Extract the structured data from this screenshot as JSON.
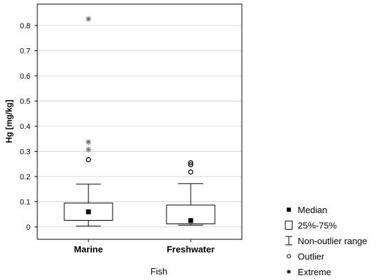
{
  "chart_data": {
    "type": "boxplot",
    "xlabel": "Fish",
    "ylabel": "Hg [mg/kg]",
    "ylim": [
      -0.05,
      0.87
    ],
    "yticks": [
      "0",
      "0.1",
      "0.2",
      "0.3",
      "0.4",
      "0.5",
      "0.6",
      "0.7",
      "0.8"
    ],
    "grid": "horizontal",
    "legend_position": "bottom-right",
    "categories": [
      "Marine",
      "Freshwater"
    ],
    "groups": [
      {
        "category": "Marine",
        "median": 0.06,
        "q1": 0.026,
        "q3": 0.095,
        "whisker_low": 0.003,
        "whisker_high": 0.17,
        "outliers": [
          0.267
        ],
        "extremes": [
          0.826,
          0.337,
          0.307
        ]
      },
      {
        "category": "Freshwater",
        "median": 0.025,
        "q1": 0.012,
        "q3": 0.087,
        "whisker_low": 0.007,
        "whisker_high": 0.172,
        "outliers": [
          0.255,
          0.247,
          0.218
        ],
        "extremes": []
      }
    ],
    "legend": [
      {
        "symbol": "filled-square",
        "label": "Median"
      },
      {
        "symbol": "open-square",
        "label": "25%-75%"
      },
      {
        "symbol": "whisker",
        "label": "Non-outlier range"
      },
      {
        "symbol": "open-circle",
        "label": "Outlier"
      },
      {
        "symbol": "asterisk",
        "label": "Extreme"
      }
    ]
  }
}
